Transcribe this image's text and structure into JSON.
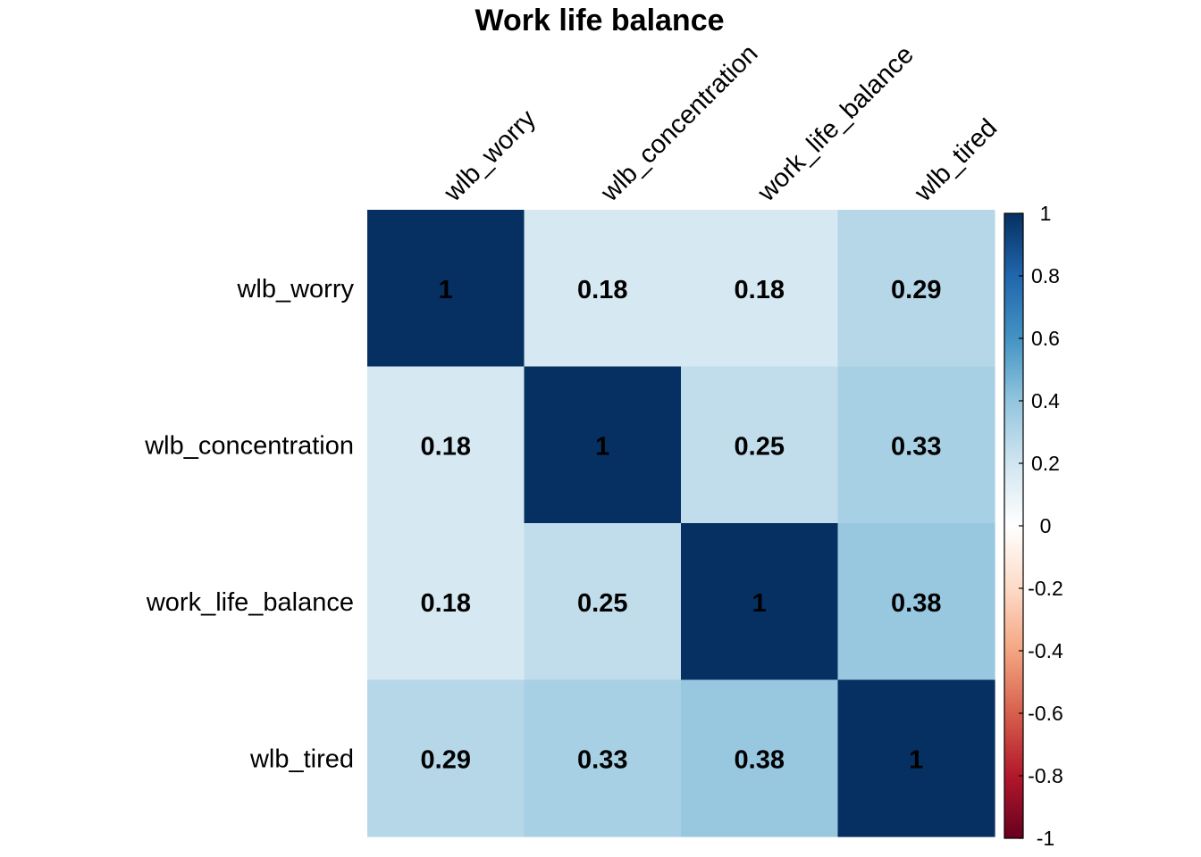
{
  "chart_data": {
    "type": "heatmap",
    "title": "Work life balance",
    "variables": [
      "wlb_worry",
      "wlb_concentration",
      "work_life_balance",
      "wlb_tired"
    ],
    "matrix": [
      [
        1,
        0.18,
        0.18,
        0.29
      ],
      [
        0.18,
        1,
        0.25,
        0.33
      ],
      [
        0.18,
        0.25,
        1,
        0.38
      ],
      [
        0.29,
        0.33,
        0.38,
        1
      ]
    ],
    "cell_labels": [
      [
        "1",
        "0.18",
        "0.18",
        "0.29"
      ],
      [
        "0.18",
        "1",
        "0.25",
        "0.33"
      ],
      [
        "0.18",
        "0.25",
        "1",
        "0.38"
      ],
      [
        "0.29",
        "0.33",
        "0.38",
        "1"
      ]
    ],
    "color_scale": {
      "range": [
        -1,
        1
      ],
      "ticks": [
        1,
        0.8,
        0.6,
        0.4,
        0.2,
        0,
        -0.2,
        -0.4,
        -0.6,
        -0.8,
        -1
      ],
      "tick_labels": [
        "1",
        "0.8",
        "0.6",
        "0.4",
        "0.2",
        "0",
        "-0.2",
        "-0.4",
        "-0.6",
        "-0.8",
        "-1"
      ],
      "colors": [
        "#67001F",
        "#B2182B",
        "#D6604D",
        "#F4A582",
        "#FDDBC7",
        "#FFFFFF",
        "#D1E5F0",
        "#92C5DE",
        "#4393C3",
        "#2166AC",
        "#053061"
      ]
    },
    "legend_position": "right"
  }
}
